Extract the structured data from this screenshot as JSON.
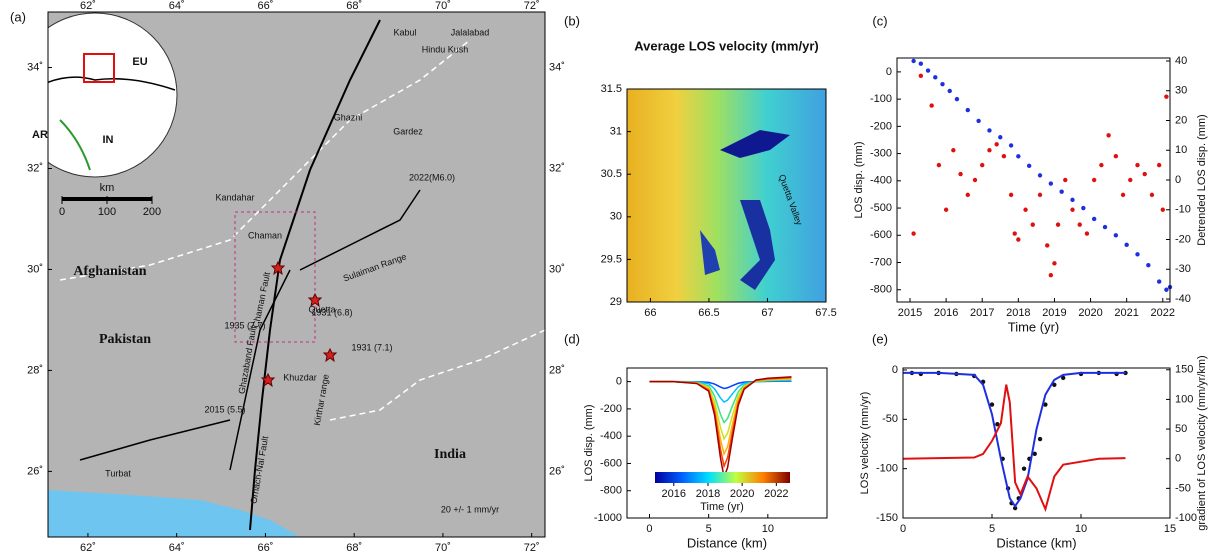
{
  "chart_data": [
    {
      "type": "map",
      "panel": "(a)",
      "xlim": [
        61.1,
        72.3
      ],
      "ylim": [
        24.7,
        35.1
      ],
      "xticks": [
        {
          "value": 62,
          "label": "62˚"
        },
        {
          "value": 64,
          "label": "64˚"
        },
        {
          "value": 66,
          "label": "66˚"
        },
        {
          "value": 68,
          "label": "68˚"
        },
        {
          "value": 70,
          "label": "70˚"
        },
        {
          "value": 72,
          "label": "72˚"
        }
      ],
      "yticks": [
        {
          "value": 26,
          "label": "26˚"
        },
        {
          "value": 28,
          "label": "28˚"
        },
        {
          "value": 30,
          "label": "30˚"
        },
        {
          "value": 32,
          "label": "32˚"
        },
        {
          "value": 34,
          "label": "34˚"
        }
      ],
      "labels": [
        "Afghanistan",
        "Pakistan",
        "India",
        "Quetta",
        "Kandahar",
        "Chaman",
        "Kabul",
        "Jalalabad",
        "Hindu Kush",
        "Ghazni",
        "Gardez",
        "2022(M6.0)",
        "1931 (6.8)",
        "1931 (7.1)",
        "1935 (7.7)",
        "2015 (5.5)",
        "Chaman Fault",
        "Ghazaband Fault",
        "Sulaiman Range",
        "Kirthar range",
        "Ornach-Nal Fault",
        "Khuzdar",
        "Turbat",
        "20 +/- 1 mm/yr"
      ],
      "inset_labels": [
        "EU",
        "AR",
        "IN"
      ],
      "scale_label": "km",
      "scale_ticks": [
        0,
        100,
        200
      ]
    },
    {
      "type": "image",
      "panel": "(b)",
      "title": "Average LOS velocity (mm/yr)",
      "xlim": [
        65.8,
        67.5
      ],
      "ylim": [
        29,
        31.5
      ],
      "xticks": [
        66,
        66.5,
        67,
        67.5
      ],
      "yticks": [
        29,
        29.5,
        30,
        30.5,
        31,
        31.5
      ],
      "annotation": "Quetta Valley"
    },
    {
      "type": "scatter",
      "panel": "(c)",
      "xlabel": "Time (yr)",
      "ylabel": "LOS disp. (mm)",
      "y2label": "Detrended LOS disp. (mm)",
      "xlim": [
        2014.64,
        2022.2
      ],
      "ylim": [
        -845,
        51
      ],
      "y2lim": [
        -41,
        41
      ],
      "xticks": [
        2015,
        2016,
        2017,
        2018,
        2019,
        2020,
        2021,
        2022
      ],
      "yticks": [
        0,
        -100,
        -200,
        -300,
        -400,
        -500,
        -600,
        -700,
        -800
      ],
      "y2ticks": [
        40,
        30,
        20,
        10,
        0,
        -10,
        -20,
        -30,
        -40
      ],
      "series": [
        {
          "color": "#1f2fe0",
          "style": "points",
          "x": [
            2015.1,
            2015.3,
            2015.5,
            2015.7,
            2015.9,
            2016.1,
            2016.3,
            2016.6,
            2016.9,
            2017.2,
            2017.5,
            2017.8,
            2018.0,
            2018.3,
            2018.6,
            2018.9,
            2019.2,
            2019.5,
            2019.8,
            2020.1,
            2020.4,
            2020.7,
            2021.0,
            2021.3,
            2021.6,
            2021.9,
            2022.1,
            2022.2
          ],
          "values": [
            40,
            30,
            5,
            -20,
            -45,
            -70,
            -100,
            -140,
            -180,
            -215,
            -240,
            -270,
            -310,
            -345,
            -380,
            -410,
            -440,
            -470,
            -500,
            -540,
            -570,
            -600,
            -635,
            -670,
            -710,
            -770,
            -800,
            -790
          ]
        },
        {
          "color": "#e01010",
          "style": "points",
          "axis": "y2",
          "x": [
            2015.1,
            2015.3,
            2015.6,
            2015.8,
            2016.0,
            2016.2,
            2016.4,
            2016.6,
            2016.8,
            2017.0,
            2017.2,
            2017.4,
            2017.6,
            2017.8,
            2017.9,
            2018.0,
            2018.2,
            2018.4,
            2018.6,
            2018.8,
            2018.9,
            2019.0,
            2019.1,
            2019.3,
            2019.5,
            2019.7,
            2019.9,
            2020.1,
            2020.3,
            2020.5,
            2020.7,
            2020.9,
            2021.1,
            2021.3,
            2021.5,
            2021.7,
            2021.9,
            2022.0,
            2022.1
          ],
          "values": [
            -18,
            35,
            25,
            5,
            -10,
            10,
            2,
            -5,
            0,
            5,
            10,
            12,
            8,
            -5,
            -18,
            -20,
            -10,
            -15,
            -5,
            -22,
            -32,
            -28,
            -15,
            0,
            -10,
            -15,
            -18,
            0,
            5,
            15,
            8,
            -5,
            0,
            5,
            2,
            -5,
            5,
            -10,
            28
          ]
        }
      ]
    },
    {
      "type": "line",
      "panel": "(d)",
      "xlabel": "Distance (km)",
      "ylabel": "LOS disp. (mm)",
      "xlim": [
        -1.9,
        15
      ],
      "ylim": [
        -1000,
        100
      ],
      "xticks": [
        0,
        5,
        10
      ],
      "yticks": [
        0,
        -200,
        -400,
        -600,
        -800,
        -1000
      ],
      "x": [
        0,
        1,
        2,
        4,
        5,
        5.5,
        6,
        6.3,
        6.6,
        7,
        7.5,
        8,
        9,
        10,
        12
      ],
      "series": [
        {
          "color": "#0040ff",
          "values": [
            0,
            0,
            0,
            -1,
            -5,
            -18,
            -40,
            -50,
            -45,
            -30,
            -12,
            -4,
            0,
            2,
            5
          ]
        },
        {
          "color": "#00c0ff",
          "values": [
            0,
            0,
            0,
            -3,
            -15,
            -52,
            -120,
            -150,
            -135,
            -90,
            -38,
            -12,
            0,
            5,
            10
          ]
        },
        {
          "color": "#40e080",
          "values": [
            0,
            0,
            0,
            -6,
            -30,
            -105,
            -240,
            -300,
            -270,
            -180,
            -75,
            -24,
            0,
            8,
            15
          ]
        },
        {
          "color": "#d0e020",
          "values": [
            0,
            0,
            0,
            -8,
            -42,
            -147,
            -336,
            -420,
            -378,
            -252,
            -105,
            -34,
            5,
            12,
            20
          ]
        },
        {
          "color": "#ffb000",
          "values": [
            0,
            0,
            0,
            -10,
            -53,
            -185,
            -424,
            -530,
            -477,
            -318,
            -132,
            -42,
            8,
            15,
            25
          ]
        },
        {
          "color": "#ff4000",
          "values": [
            0,
            0,
            0,
            -12,
            -62,
            -217,
            -496,
            -620,
            -558,
            -372,
            -155,
            -50,
            10,
            20,
            30
          ]
        },
        {
          "color": "#a00000",
          "values": [
            0,
            0,
            0,
            -14,
            -70,
            -245,
            -560,
            -700,
            -630,
            -420,
            -175,
            -56,
            12,
            25,
            35
          ]
        }
      ],
      "colorbar_lim": [
        2014.9,
        2022.8
      ],
      "colorbar_ticks": [
        2016,
        2018,
        2020,
        2022
      ],
      "colorbar_label": "Time (yr)"
    },
    {
      "type": "line",
      "panel": "(e)",
      "xlabel": "Distance (km)",
      "ylabel": "LOS velocity (mm/yr)",
      "y2label": "gradient of LOS velocity (mm/yr/km)",
      "xlim": [
        0,
        15
      ],
      "ylim": [
        -150,
        2
      ],
      "y2lim": [
        -100,
        153
      ],
      "xticks": [
        0,
        5,
        10,
        15
      ],
      "yticks": [
        0,
        -50,
        -100,
        -150
      ],
      "y2ticks": [
        150,
        100,
        50,
        0,
        -50,
        -100
      ],
      "series": [
        {
          "color": "#111111",
          "style": "points",
          "x": [
            0.5,
            1,
            2,
            3,
            4,
            4.5,
            5,
            5.3,
            5.6,
            5.9,
            6.1,
            6.3,
            6.5,
            6.8,
            7.1,
            7.4,
            7.7,
            8,
            8.5,
            9,
            10,
            11,
            12,
            12.5
          ],
          "values": [
            -3,
            -4,
            -3,
            -4,
            -6,
            -12,
            -35,
            -55,
            -90,
            -120,
            -135,
            -140,
            -130,
            -100,
            -90,
            -85,
            -70,
            -35,
            -15,
            -8,
            -4,
            -3,
            -4,
            -3
          ]
        },
        {
          "color": "#1f2fe0",
          "style": "line",
          "x": [
            0,
            2,
            4,
            4.5,
            5,
            5.5,
            6,
            6.3,
            6.6,
            7,
            7.5,
            8,
            8.5,
            9,
            10,
            12.5
          ],
          "values": [
            -3,
            -3,
            -5,
            -15,
            -45,
            -90,
            -130,
            -138,
            -130,
            -110,
            -60,
            -25,
            -10,
            -5,
            -3,
            -3
          ]
        },
        {
          "color": "#e01010",
          "style": "line",
          "axis": "y2",
          "x": [
            0,
            2,
            4,
            4.5,
            5,
            5.5,
            5.8,
            6.0,
            6.3,
            6.6,
            7,
            7.5,
            8,
            8.5,
            9,
            10,
            11,
            12.5
          ],
          "values": [
            0,
            1,
            2,
            8,
            30,
            60,
            125,
            95,
            -40,
            -60,
            -30,
            -50,
            -85,
            -30,
            -10,
            -5,
            0,
            1
          ]
        }
      ]
    }
  ]
}
